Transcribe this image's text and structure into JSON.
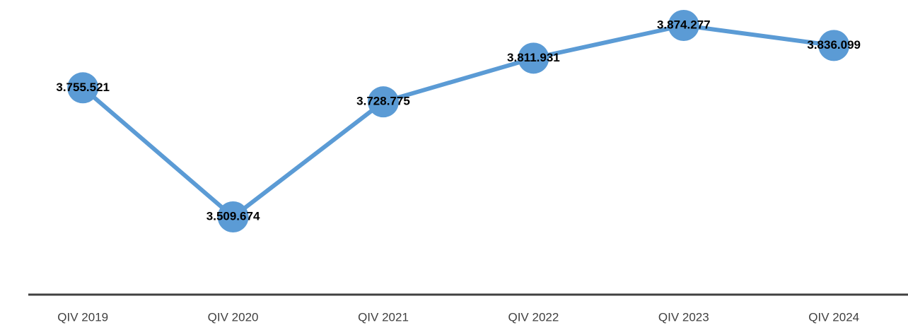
{
  "chart_data": {
    "type": "line",
    "categories": [
      "QIV 2019",
      "QIV 2020",
      "QIV 2021",
      "QIV 2022",
      "QIV 2023",
      "QIV 2024"
    ],
    "series": [
      {
        "color": "#5b9bd5",
        "values": [
          3755521,
          3509674,
          3728775,
          3811931,
          3874277,
          3836099
        ],
        "value_labels": [
          "3.755.521",
          "3.509.674",
          "3.728.775",
          "3.811.931",
          "3.874.277",
          "3.836.099"
        ]
      }
    ]
  }
}
